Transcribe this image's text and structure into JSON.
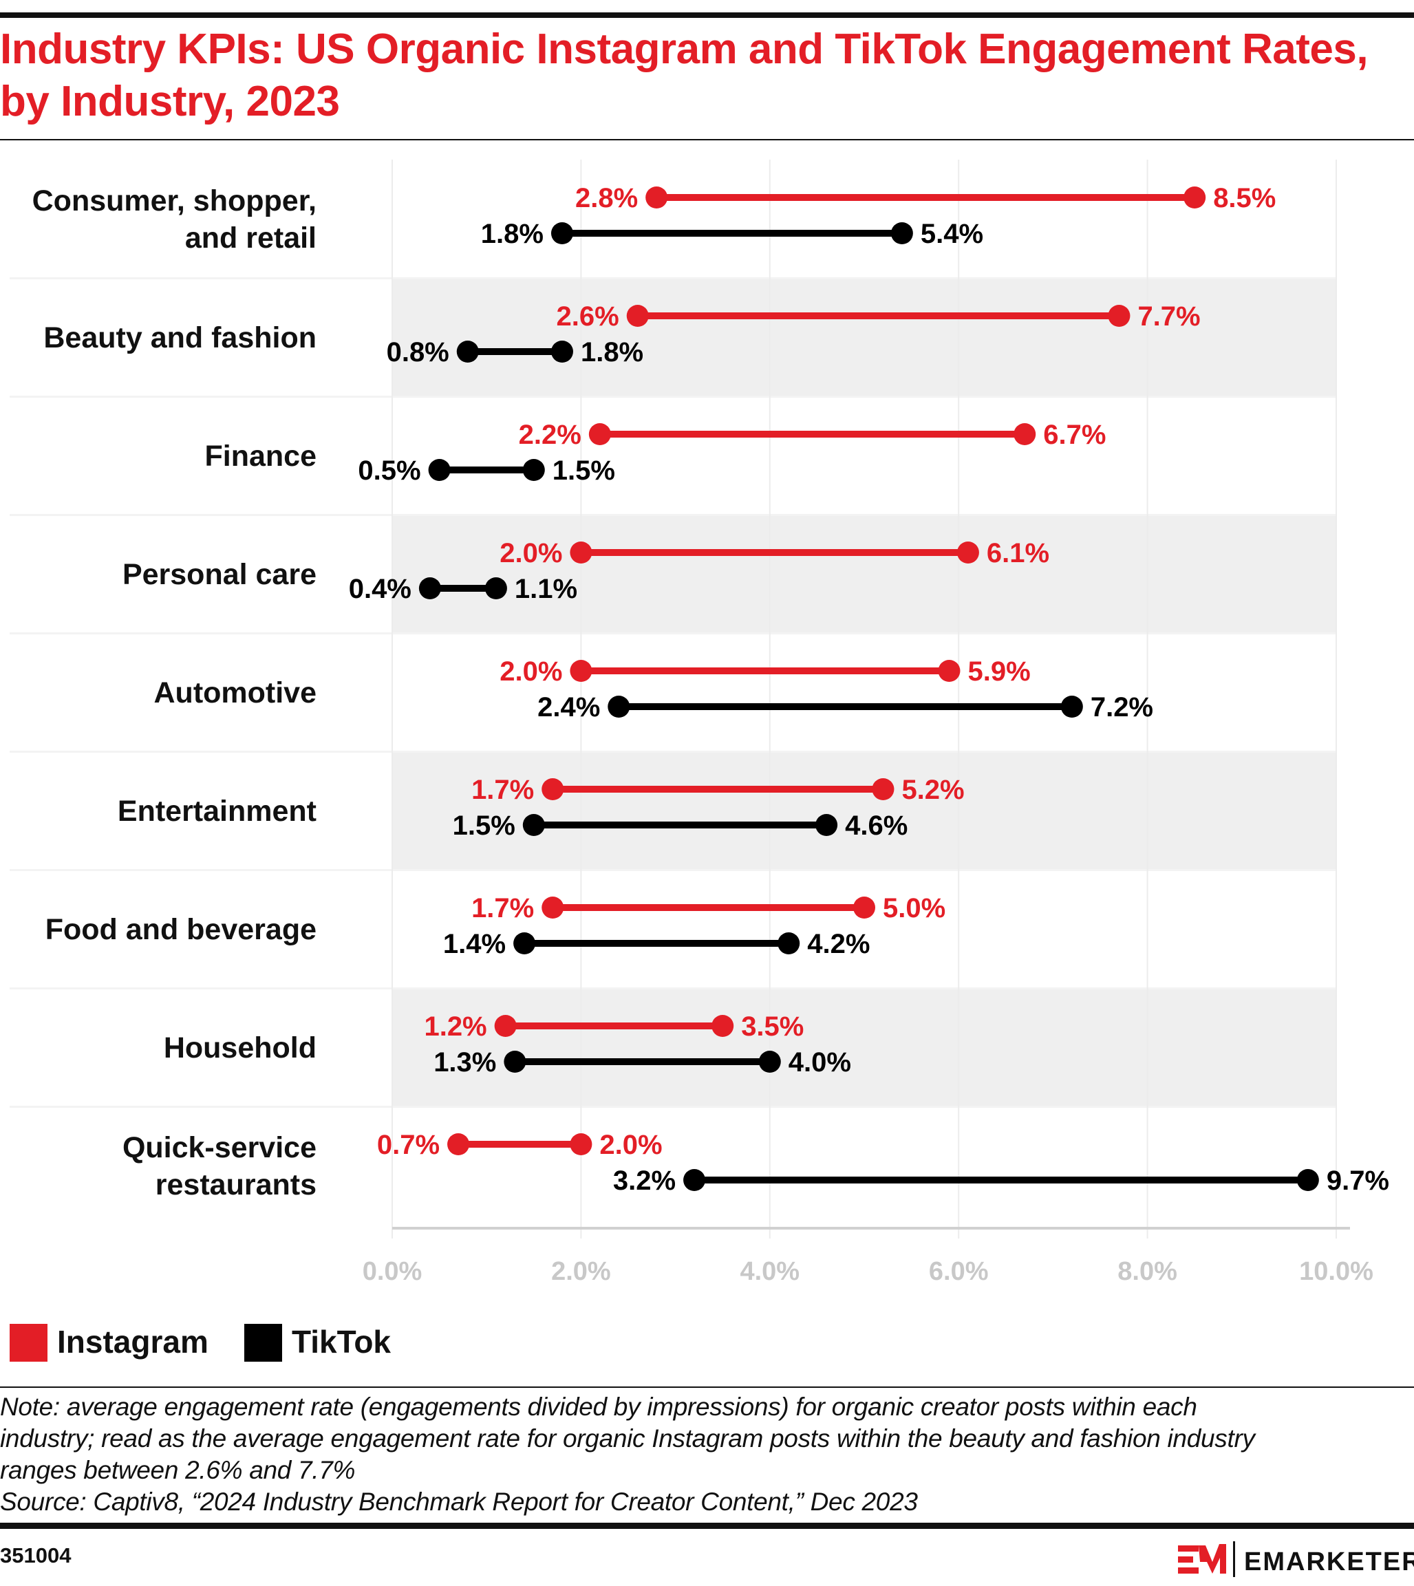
{
  "title": "Industry KPIs: US Organic Instagram and TikTok Engagement Rates, by Industry, 2023",
  "chart_data": {
    "type": "dumbbell",
    "title": "Industry KPIs: US Organic Instagram and TikTok Engagement Rates, by Industry, 2023",
    "xlabel": "",
    "ylabel": "",
    "xlim": [
      0,
      10
    ],
    "x_ticks": [
      "0.0%",
      "2.0%",
      "4.0%",
      "6.0%",
      "8.0%",
      "10.0%"
    ],
    "x_tick_values": [
      0,
      2,
      4,
      6,
      8,
      10
    ],
    "grid": "vertical",
    "legend_position": "bottom-left",
    "categories": [
      "Consumer, shopper, and retail",
      "Beauty and fashion",
      "Finance",
      "Personal care",
      "Automotive",
      "Entertainment",
      "Food and beverage",
      "Household",
      "Quick-service restaurants"
    ],
    "category_lines": [
      [
        "Consumer, shopper,",
        "and retail"
      ],
      [
        "Beauty and fashion"
      ],
      [
        "Finance"
      ],
      [
        "Personal care"
      ],
      [
        "Automotive"
      ],
      [
        "Entertainment"
      ],
      [
        "Food and beverage"
      ],
      [
        "Household"
      ],
      [
        "Quick-service",
        "restaurants"
      ]
    ],
    "series": [
      {
        "name": "Instagram",
        "color": "#e31e26",
        "low": [
          2.8,
          2.6,
          2.2,
          2.0,
          2.0,
          1.7,
          1.7,
          1.2,
          0.7
        ],
        "high": [
          8.5,
          7.7,
          6.7,
          6.1,
          5.9,
          5.2,
          5.0,
          3.5,
          2.0
        ],
        "low_labels": [
          "2.8%",
          "2.6%",
          "2.2%",
          "2.0%",
          "2.0%",
          "1.7%",
          "1.7%",
          "1.2%",
          "0.7%"
        ],
        "high_labels": [
          "8.5%",
          "7.7%",
          "6.7%",
          "6.1%",
          "5.9%",
          "5.2%",
          "5.0%",
          "3.5%",
          "2.0%"
        ]
      },
      {
        "name": "TikTok",
        "color": "#000000",
        "low": [
          1.8,
          0.8,
          0.5,
          0.4,
          2.4,
          1.5,
          1.4,
          1.3,
          3.2
        ],
        "high": [
          5.4,
          1.8,
          1.5,
          1.1,
          7.2,
          4.6,
          4.2,
          4.0,
          9.7
        ],
        "low_labels": [
          "1.8%",
          "0.8%",
          "0.5%",
          "0.4%",
          "2.4%",
          "1.5%",
          "1.4%",
          "1.3%",
          "3.2%"
        ],
        "high_labels": [
          "5.4%",
          "1.8%",
          "1.5%",
          "1.1%",
          "7.2%",
          "4.6%",
          "4.2%",
          "4.0%",
          "9.7%"
        ]
      }
    ]
  },
  "notes": {
    "line1": "Note: average engagement rate (engagements divided by impressions) for organic creator posts within each",
    "line2": "industry; read as the average engagement rate for organic Instagram posts within the beauty and fashion industry",
    "line3": "ranges between 2.6% and 7.7%",
    "source": "Source: Captiv8, “2024 Industry Benchmark Report for Creator Content,” Dec 2023"
  },
  "footer": {
    "chart_id": "351004",
    "logo_text": "EMARKETER"
  },
  "colors": {
    "accent": "#e31e26",
    "band": "#efefef",
    "axis_text": "#c8c8c8"
  }
}
